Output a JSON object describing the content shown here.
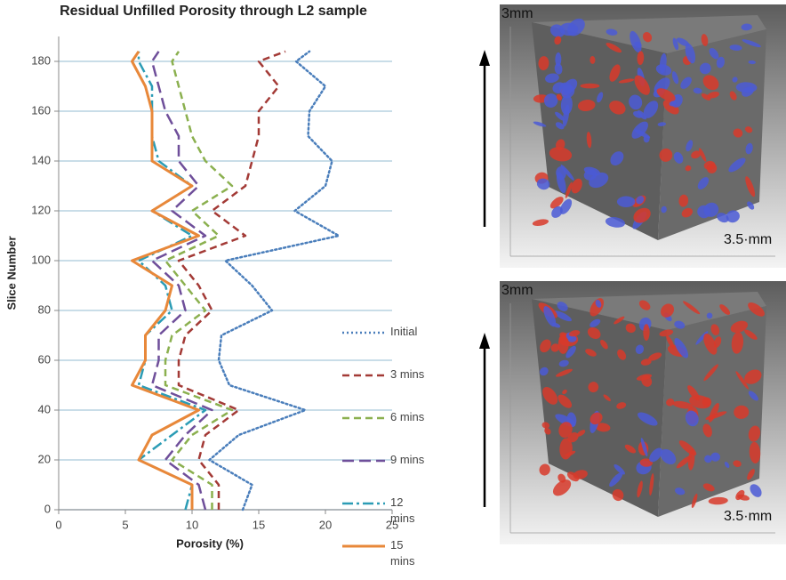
{
  "chart_data": {
    "type": "line",
    "title": "Residual Unfilled Porosity through L2 sample",
    "x_label": "Porosity (%)",
    "y_label": "Slice Number",
    "y": [
      0,
      10,
      20,
      30,
      40,
      50,
      60,
      70,
      80,
      90,
      100,
      110,
      120,
      130,
      140,
      150,
      160,
      170,
      180,
      184
    ],
    "xlim": [
      0,
      25
    ],
    "xticks": [
      0,
      5,
      10,
      15,
      20,
      25
    ],
    "ylim": [
      0,
      190
    ],
    "yticks": [
      0,
      20,
      40,
      60,
      80,
      100,
      120,
      140,
      160,
      180
    ],
    "grid": true,
    "series": [
      {
        "name": "Initial",
        "color": "#4a7ebb",
        "dash": "dotted",
        "values": [
          13.8,
          14.5,
          11.3,
          13.5,
          18.5,
          12.8,
          12,
          12.2,
          16,
          14.5,
          12.5,
          21,
          17.7,
          20,
          20.5,
          18.7,
          18.8,
          20,
          17.8,
          18.8
        ]
      },
      {
        "name": "3 mins",
        "color": "#a33a36",
        "dash": "dashed",
        "values": [
          12,
          12,
          10.5,
          11,
          13.5,
          9,
          9,
          9.5,
          11.5,
          10.5,
          9,
          14,
          11.5,
          14,
          14.5,
          15,
          15,
          16.5,
          15,
          17
        ]
      },
      {
        "name": "6 mins",
        "color": "#8bb04f",
        "dash": "dashed",
        "values": [
          11.5,
          11.5,
          8.5,
          10,
          13,
          8,
          8,
          8.5,
          11,
          9.5,
          8,
          12,
          10,
          13,
          11,
          10,
          9.5,
          9,
          8.5,
          9
        ]
      },
      {
        "name": "9 mins",
        "color": "#6f4f9a",
        "dash": "longdash",
        "values": [
          11,
          10.5,
          8,
          9.5,
          11.5,
          7,
          7.5,
          7.5,
          9.5,
          9,
          7,
          11,
          8.5,
          10.5,
          9,
          9,
          8,
          7.5,
          7,
          7.5
        ]
      },
      {
        "name": "12 mins",
        "color": "#2b9cb5",
        "dash": "dashdot",
        "values": [
          9.5,
          10,
          6,
          8.5,
          11,
          6,
          6.5,
          6.5,
          8.5,
          8,
          6,
          10,
          7,
          10,
          7.5,
          7,
          7,
          7,
          6,
          6
        ]
      },
      {
        "name": "15 mins",
        "color": "#e8883a",
        "dash": "solid",
        "values": [
          10,
          10,
          6,
          7,
          10.5,
          5.5,
          6.5,
          6.5,
          8,
          8.5,
          5.5,
          10.5,
          7,
          10,
          7,
          7,
          7,
          6.5,
          5.5,
          6
        ]
      }
    ]
  },
  "images": [
    {
      "top_label": "3mm",
      "side_label": "3.5·mm"
    },
    {
      "top_label": "3mm",
      "side_label": "3.5·mm"
    }
  ]
}
